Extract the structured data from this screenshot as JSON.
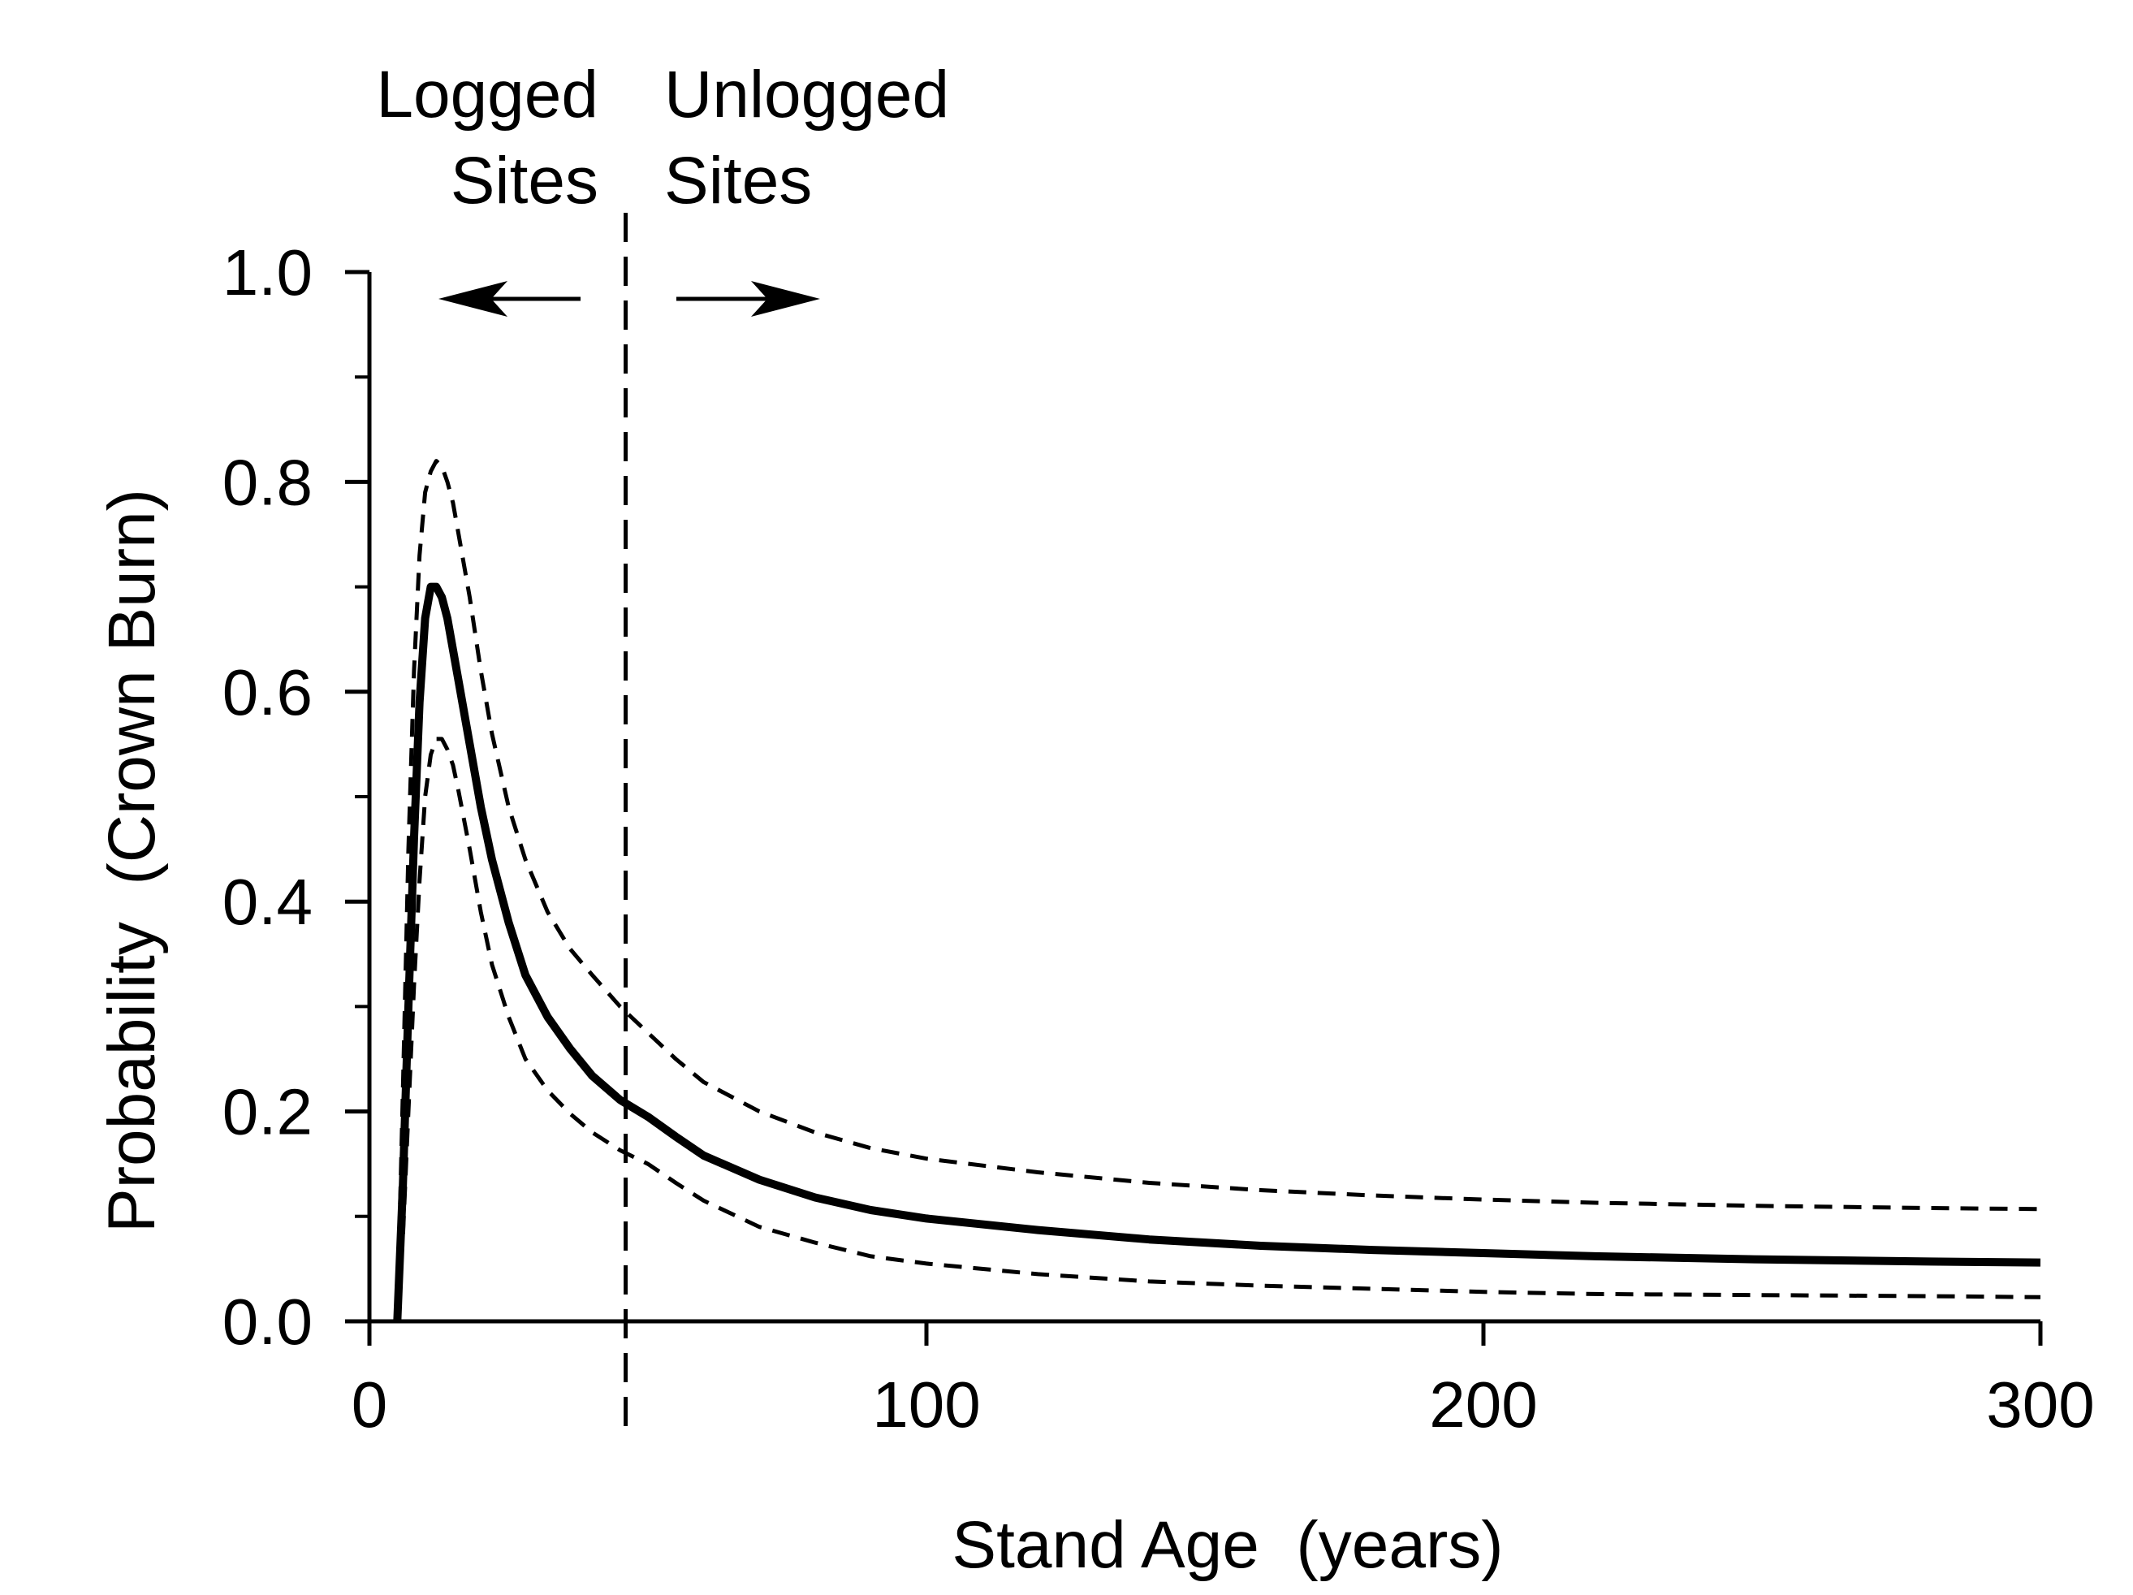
{
  "chart_data": {
    "type": "line",
    "xlabel": "Stand Age  (years)",
    "ylabel": "Probability  (Crown Burn)",
    "xlim": [
      0,
      300
    ],
    "ylim": [
      0,
      1.0
    ],
    "x_ticks": [
      {
        "value": 0,
        "label": "0"
      },
      {
        "value": 100,
        "label": "100"
      },
      {
        "value": 200,
        "label": "200"
      },
      {
        "value": 300,
        "label": "300"
      }
    ],
    "y_ticks": [
      {
        "value": 0.0,
        "label": "0.0"
      },
      {
        "value": 0.2,
        "label": "0.2"
      },
      {
        "value": 0.4,
        "label": "0.4"
      },
      {
        "value": 0.6,
        "label": "0.6"
      },
      {
        "value": 0.8,
        "label": "0.8"
      },
      {
        "value": 1.0,
        "label": "1.0"
      }
    ],
    "y_minor_ticks": [
      0.1,
      0.3,
      0.5,
      0.7,
      0.9
    ],
    "series": [
      {
        "style": "solid",
        "x": [
          5,
          6,
          7,
          8,
          9,
          10,
          11,
          12,
          13,
          14,
          15,
          16,
          18,
          20,
          22,
          25,
          28,
          32,
          36,
          40,
          45,
          50,
          55,
          60,
          70,
          80,
          90,
          100,
          120,
          140,
          160,
          180,
          200,
          220,
          250,
          280,
          300
        ],
        "y": [
          0.0,
          0.13,
          0.3,
          0.46,
          0.59,
          0.67,
          0.7,
          0.7,
          0.69,
          0.67,
          0.64,
          0.61,
          0.55,
          0.49,
          0.44,
          0.38,
          0.33,
          0.29,
          0.26,
          0.234,
          0.211,
          0.195,
          0.176,
          0.158,
          0.135,
          0.118,
          0.106,
          0.098,
          0.087,
          0.078,
          0.072,
          0.068,
          0.065,
          0.062,
          0.059,
          0.057,
          0.056
        ]
      },
      {
        "style": "dashed",
        "x": [
          5,
          6,
          7,
          8,
          9,
          10,
          11,
          12,
          13,
          14,
          15,
          16,
          18,
          20,
          22,
          25,
          28,
          32,
          36,
          40,
          45,
          50,
          55,
          60,
          70,
          80,
          90,
          100,
          120,
          140,
          160,
          180,
          200,
          220,
          250,
          280,
          300
        ],
        "y": [
          0.0,
          0.22,
          0.45,
          0.62,
          0.73,
          0.79,
          0.81,
          0.82,
          0.815,
          0.8,
          0.78,
          0.75,
          0.69,
          0.62,
          0.56,
          0.49,
          0.44,
          0.39,
          0.355,
          0.33,
          0.3,
          0.275,
          0.25,
          0.228,
          0.2,
          0.18,
          0.165,
          0.155,
          0.142,
          0.132,
          0.125,
          0.12,
          0.116,
          0.113,
          0.11,
          0.108,
          0.107
        ]
      },
      {
        "style": "dashed",
        "x": [
          5,
          6,
          7,
          8,
          9,
          10,
          11,
          12,
          13,
          14,
          15,
          16,
          18,
          20,
          22,
          25,
          28,
          32,
          36,
          40,
          45,
          50,
          55,
          60,
          70,
          80,
          90,
          100,
          120,
          140,
          160,
          180,
          200,
          220,
          250,
          280,
          300
        ],
        "y": [
          0.0,
          0.08,
          0.2,
          0.32,
          0.42,
          0.5,
          0.54,
          0.555,
          0.555,
          0.545,
          0.53,
          0.505,
          0.45,
          0.39,
          0.34,
          0.29,
          0.25,
          0.22,
          0.198,
          0.18,
          0.163,
          0.15,
          0.132,
          0.115,
          0.09,
          0.075,
          0.062,
          0.055,
          0.045,
          0.038,
          0.034,
          0.031,
          0.028,
          0.026,
          0.025,
          0.024,
          0.023
        ]
      }
    ],
    "vertical_line": {
      "x": 46,
      "style": "dashed"
    },
    "annotations": {
      "left_line1": "Logged",
      "left_line2": "Sites",
      "right_line1": "Unlogged",
      "right_line2": "Sites"
    }
  }
}
